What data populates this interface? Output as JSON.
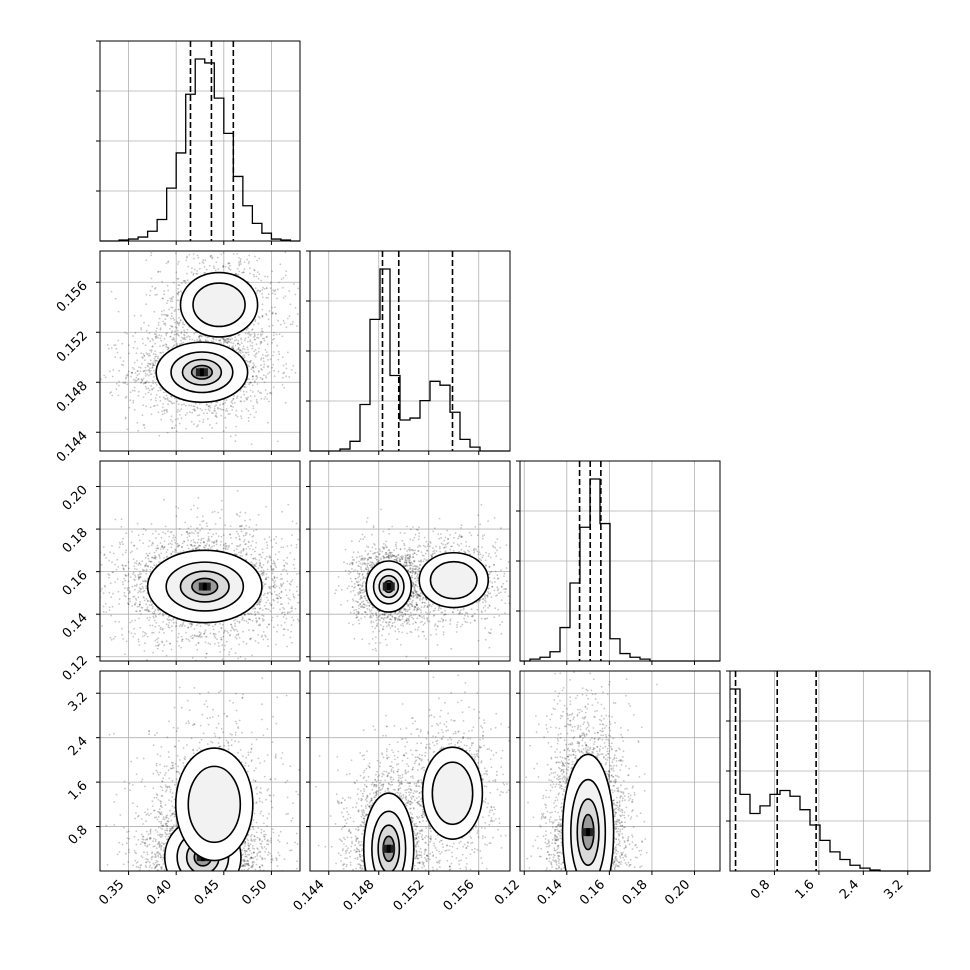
{
  "chart_data": {
    "type": "scatter",
    "title": "",
    "grid": true,
    "parameters": [
      {
        "range": [
          0.32,
          0.53
        ],
        "ticks": [
          0.35,
          0.4,
          0.45,
          0.5
        ],
        "tick_labels": [
          "0.35",
          "0.40",
          "0.45",
          "0.50"
        ],
        "quantiles": [
          0.415,
          0.437,
          0.46
        ]
      },
      {
        "range": [
          0.1425,
          0.1585
        ],
        "ticks": [
          0.144,
          0.148,
          0.152,
          0.156
        ],
        "tick_labels": [
          "0.144",
          "0.148",
          "0.152",
          "0.156"
        ],
        "quantiles": [
          0.1483,
          0.1496,
          0.1539
        ]
      },
      {
        "range": [
          0.118,
          0.212
        ],
        "ticks": [
          0.12,
          0.14,
          0.16,
          0.18,
          0.2
        ],
        "tick_labels": [
          "0.12",
          "0.14",
          "0.16",
          "0.18",
          "0.20"
        ],
        "quantiles": [
          0.146,
          0.151,
          0.156
        ]
      },
      {
        "range": [
          0.0,
          3.6
        ],
        "ticks": [
          0.8,
          1.6,
          2.4,
          3.2
        ],
        "tick_labels": [
          "0.8",
          "1.6",
          "2.4",
          "3.2"
        ],
        "quantiles": [
          0.1,
          0.85,
          1.55
        ]
      }
    ],
    "histograms": [
      {
        "edges": [
          0.32,
          0.33,
          0.34,
          0.35,
          0.36,
          0.37,
          0.38,
          0.39,
          0.4,
          0.41,
          0.42,
          0.43,
          0.44,
          0.45,
          0.46,
          0.47,
          0.48,
          0.49,
          0.5,
          0.51,
          0.52,
          0.53
        ],
        "counts": [
          0,
          0,
          0.005,
          0.01,
          0.02,
          0.05,
          0.11,
          0.27,
          0.45,
          0.75,
          0.93,
          0.91,
          0.73,
          0.55,
          0.33,
          0.18,
          0.09,
          0.04,
          0.01,
          0.005,
          0
        ]
      },
      {
        "edges": [
          0.1425,
          0.1433,
          0.1441,
          0.1449,
          0.1457,
          0.1465,
          0.1473,
          0.1481,
          0.1489,
          0.1497,
          0.1505,
          0.1513,
          0.1521,
          0.1529,
          0.1537,
          0.1545,
          0.1553,
          0.1561,
          0.1569,
          0.1577,
          0.1585
        ],
        "counts": [
          0,
          0,
          0,
          0.01,
          0.05,
          0.24,
          0.68,
          0.94,
          0.39,
          0.16,
          0.17,
          0.26,
          0.36,
          0.34,
          0.2,
          0.06,
          0.02,
          0,
          0,
          0
        ]
      },
      {
        "edges": [
          0.118,
          0.1227,
          0.1274,
          0.1321,
          0.1368,
          0.1415,
          0.1462,
          0.1509,
          0.1556,
          0.1603,
          0.165,
          0.1697,
          0.1744,
          0.1791,
          0.1838,
          0.1885,
          0.1932,
          0.1979,
          0.2026,
          0.2073,
          0.212
        ],
        "counts": [
          0,
          0.01,
          0.02,
          0.05,
          0.18,
          0.42,
          0.72,
          0.98,
          0.74,
          0.12,
          0.04,
          0.02,
          0.01,
          0,
          0,
          0,
          0,
          0,
          0,
          0
        ]
      },
      {
        "edges": [
          0.0,
          0.18,
          0.36,
          0.54,
          0.72,
          0.9,
          1.08,
          1.26,
          1.44,
          1.62,
          1.8,
          1.98,
          2.16,
          2.34,
          2.52,
          2.7,
          2.88,
          3.06,
          3.24,
          3.42,
          3.6
        ],
        "counts": [
          0.95,
          0.4,
          0.3,
          0.34,
          0.4,
          0.42,
          0.39,
          0.32,
          0.24,
          0.16,
          0.1,
          0.06,
          0.03,
          0.015,
          0.005,
          0,
          0,
          0,
          0,
          0
        ]
      }
    ],
    "correlation_peaks": [
      {
        "row": 1,
        "col": 0,
        "blobs": [
          {
            "cx": 0.427,
            "cy": 0.1488,
            "sx": 0.024,
            "sy": 0.0012,
            "w": 1.0
          },
          {
            "cx": 0.445,
            "cy": 0.1542,
            "sx": 0.022,
            "sy": 0.0014,
            "w": 0.55
          }
        ]
      },
      {
        "row": 2,
        "col": 0,
        "blobs": [
          {
            "cx": 0.43,
            "cy": 0.153,
            "sx": 0.03,
            "sy": 0.0085,
            "w": 1.0
          }
        ]
      },
      {
        "row": 2,
        "col": 1,
        "blobs": [
          {
            "cx": 0.1488,
            "cy": 0.153,
            "sx": 0.0009,
            "sy": 0.006,
            "w": 1.0
          },
          {
            "cx": 0.154,
            "cy": 0.156,
            "sx": 0.0015,
            "sy": 0.007,
            "w": 0.6
          }
        ]
      },
      {
        "row": 3,
        "col": 0,
        "blobs": [
          {
            "cx": 0.428,
            "cy": 0.25,
            "sx": 0.02,
            "sy": 0.35,
            "w": 1.0
          },
          {
            "cx": 0.44,
            "cy": 1.2,
            "sx": 0.022,
            "sy": 0.55,
            "w": 0.6
          }
        ]
      },
      {
        "row": 3,
        "col": 1,
        "blobs": [
          {
            "cx": 0.1488,
            "cy": 0.4,
            "sx": 0.001,
            "sy": 0.5,
            "w": 1.0
          },
          {
            "cx": 0.1539,
            "cy": 1.4,
            "sx": 0.0013,
            "sy": 0.45,
            "w": 0.55
          }
        ]
      },
      {
        "row": 3,
        "col": 2,
        "blobs": [
          {
            "cx": 0.15,
            "cy": 0.7,
            "sx": 0.006,
            "sy": 0.7,
            "w": 1.0
          }
        ]
      }
    ]
  }
}
